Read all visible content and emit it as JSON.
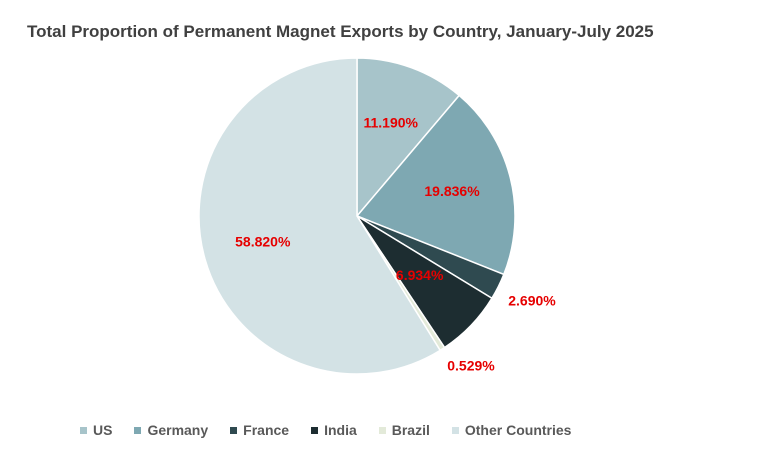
{
  "chart_data": {
    "type": "pie",
    "title": "Total Proportion of Permanent Magnet Exports by Country, January-July 2025",
    "slices": [
      {
        "label": "US",
        "value": 11.19,
        "display": "11.190%",
        "color": "#a7c4ca"
      },
      {
        "label": "Germany",
        "value": 19.836,
        "display": "19.836%",
        "color": "#7ea8b2"
      },
      {
        "label": "France",
        "value": 2.69,
        "display": "2.690%",
        "color": "#2f4a50"
      },
      {
        "label": "India",
        "value": 6.934,
        "display": "6.934%",
        "color": "#1d2d31"
      },
      {
        "label": "Brazil",
        "value": 0.529,
        "display": "0.529%",
        "color": "#e3ead9"
      },
      {
        "label": "Other Countries",
        "value": 58.82,
        "display": "58.820%",
        "color": "#d3e2e5"
      }
    ],
    "label_color": "#e60000",
    "legend_position": "bottom"
  }
}
